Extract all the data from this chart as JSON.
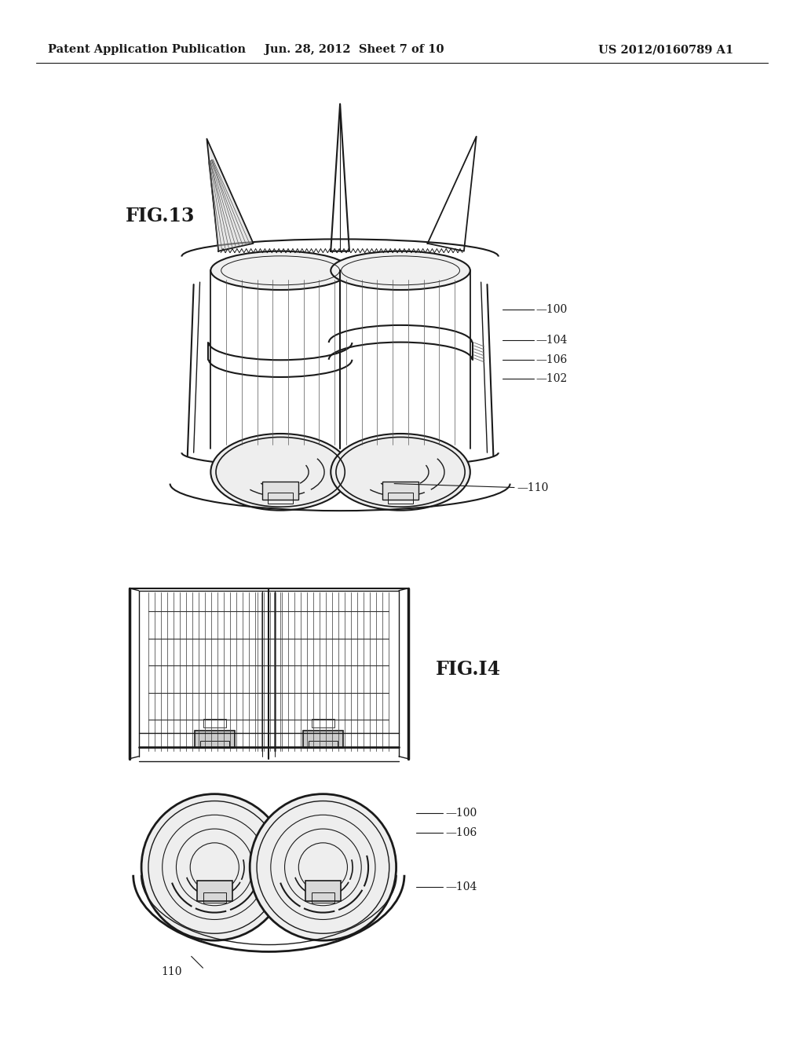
{
  "background_color": "#ffffff",
  "header_left": "Patent Application Publication",
  "header_center": "Jun. 28, 2012  Sheet 7 of 10",
  "header_right": "US 2012/0160789 A1",
  "fig13_label": "FIG.13",
  "fig14_label": "FIG.I4",
  "line_color": "#1a1a1a",
  "ref_fontsize": 10,
  "header_fontsize": 10.5,
  "fig_label_fontsize": 17
}
